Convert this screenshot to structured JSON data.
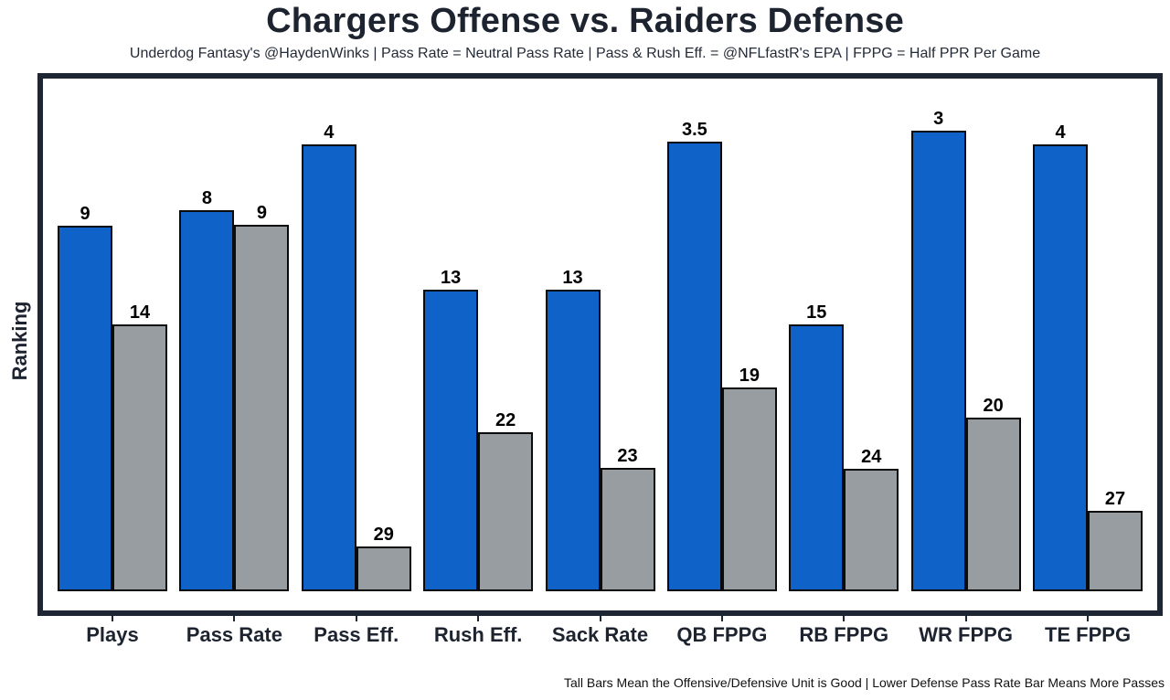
{
  "chart_data": {
    "type": "bar",
    "title": "Chargers Offense vs. Raiders Defense",
    "subtitle": "Underdog Fantasy's @HaydenWinks | Pass Rate = Neutral Pass Rate | Pass & Rush Eff. = @NFLfastR's EPA | FPPG = Half PPR Per Game",
    "ylabel": "Ranking",
    "footnote": "Tall Bars Mean the Offensive/Defensive Unit is Good | Lower Defense Pass Rate Bar Means More Passes",
    "categories": [
      "Plays",
      "Pass Rate",
      "Pass Eff.",
      "Rush Eff.",
      "Sack Rate",
      "QB FPPG",
      "RB FPPG",
      "WR FPPG",
      "TE FPPG"
    ],
    "series": [
      {
        "name": "Chargers Offense",
        "color": "#0f62c7",
        "values": [
          9,
          8,
          4,
          13,
          13,
          3.5,
          15,
          3,
          4
        ],
        "bar_heights_pct": [
          71.3,
          74.3,
          87.2,
          58.8,
          58.8,
          87.7,
          52.0,
          89.8,
          87.2
        ]
      },
      {
        "name": "Raiders Defense",
        "color": "#979da0",
        "values": [
          14,
          9,
          29,
          22,
          23,
          19,
          24,
          20,
          27
        ],
        "bar_heights_pct": [
          52.0,
          71.5,
          8.7,
          31.0,
          24.1,
          39.8,
          23.9,
          33.9,
          15.7
        ]
      }
    ],
    "value_labels_shown": true,
    "layout": {
      "legend": "none",
      "grid": false,
      "bar_edge_color": "#0b0b0b",
      "note": "taller bar = better (lower) ranking number"
    }
  },
  "colors": {
    "offense_bar": "#0f62c7",
    "defense_bar": "#979da0",
    "frame_border": "#1e2533",
    "title_text": "#1d2430",
    "background": "#ffffff"
  }
}
